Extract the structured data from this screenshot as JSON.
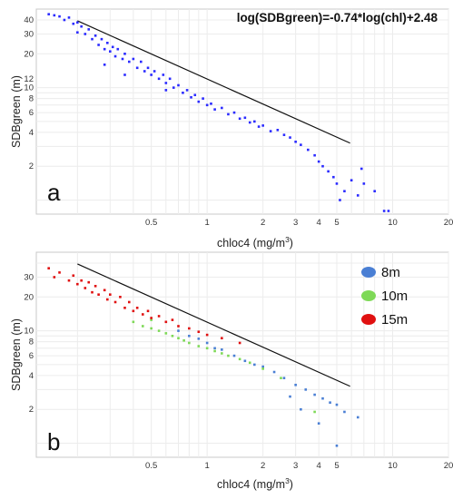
{
  "chart_data": [
    {
      "panel": "a",
      "type": "scatter",
      "xlabel": "chloc4 (mg/m",
      "xlabel_sup": "3",
      "xlabel_close": ")",
      "ylabel": "SDBgreen (m)",
      "xscale": "log",
      "yscale": "log",
      "xlim": [
        0.12,
        20
      ],
      "ylim": [
        0.75,
        50
      ],
      "xticks": [
        "0.5",
        "1",
        "2",
        "3",
        "4",
        "5",
        "10",
        "20"
      ],
      "yticks": [
        "40",
        "30",
        "20",
        "12",
        "10",
        "8",
        "6",
        "4",
        "2"
      ],
      "grid": true,
      "annotation": "log(SDBgreen)=-0.74*log(chl)+2.48",
      "fit_line": {
        "slope": -0.74,
        "intercept": 2.48,
        "x": [
          0.2,
          5.9
        ]
      },
      "series": [
        {
          "color": "#2b2bff",
          "points": [
            [
              0.14,
              45
            ],
            [
              0.15,
              44
            ],
            [
              0.16,
              43
            ],
            [
              0.17,
              40
            ],
            [
              0.18,
              42
            ],
            [
              0.19,
              37
            ],
            [
              0.2,
              38
            ],
            [
              0.2,
              31
            ],
            [
              0.21,
              35
            ],
            [
              0.22,
              30
            ],
            [
              0.23,
              33
            ],
            [
              0.24,
              27
            ],
            [
              0.25,
              29
            ],
            [
              0.26,
              24
            ],
            [
              0.27,
              27
            ],
            [
              0.28,
              22
            ],
            [
              0.29,
              25
            ],
            [
              0.3,
              21
            ],
            [
              0.31,
              23
            ],
            [
              0.32,
              19
            ],
            [
              0.33,
              22
            ],
            [
              0.35,
              18
            ],
            [
              0.36,
              20
            ],
            [
              0.38,
              17
            ],
            [
              0.4,
              18
            ],
            [
              0.42,
              15
            ],
            [
              0.44,
              17
            ],
            [
              0.46,
              14
            ],
            [
              0.48,
              15
            ],
            [
              0.5,
              13
            ],
            [
              0.52,
              14
            ],
            [
              0.55,
              12
            ],
            [
              0.58,
              13
            ],
            [
              0.6,
              11
            ],
            [
              0.63,
              12
            ],
            [
              0.66,
              10
            ],
            [
              0.7,
              10.5
            ],
            [
              0.74,
              9
            ],
            [
              0.78,
              9.5
            ],
            [
              0.82,
              8.2
            ],
            [
              0.86,
              8.6
            ],
            [
              0.9,
              7.5
            ],
            [
              0.95,
              8
            ],
            [
              1.0,
              7
            ],
            [
              1.05,
              7.2
            ],
            [
              1.1,
              6.4
            ],
            [
              1.2,
              6.6
            ],
            [
              1.3,
              5.8
            ],
            [
              1.4,
              6
            ],
            [
              1.5,
              5.3
            ],
            [
              1.6,
              5.4
            ],
            [
              1.7,
              4.9
            ],
            [
              1.8,
              5
            ],
            [
              1.9,
              4.5
            ],
            [
              2.0,
              4.6
            ],
            [
              2.2,
              4.1
            ],
            [
              2.4,
              4.2
            ],
            [
              2.6,
              3.8
            ],
            [
              2.8,
              3.6
            ],
            [
              3.0,
              3.3
            ],
            [
              3.2,
              3.1
            ],
            [
              3.5,
              2.8
            ],
            [
              3.8,
              2.5
            ],
            [
              4.0,
              2.2
            ],
            [
              4.2,
              2.0
            ],
            [
              4.5,
              1.8
            ],
            [
              4.8,
              1.6
            ],
            [
              5.0,
              1.4
            ],
            [
              5.5,
              1.2
            ],
            [
              6.0,
              1.5
            ],
            [
              6.5,
              1.1
            ],
            [
              7.0,
              1.4
            ],
            [
              5.2,
              1.0
            ],
            [
              6.8,
              1.9
            ],
            [
              8.0,
              1.2
            ],
            [
              9.5,
              0.8
            ],
            [
              9.0,
              0.8
            ],
            [
              0.28,
              16
            ],
            [
              0.36,
              13
            ],
            [
              0.6,
              9.5
            ]
          ]
        }
      ]
    },
    {
      "panel": "b",
      "type": "scatter",
      "xlabel": "chloc4 (mg/m",
      "xlabel_sup": "3",
      "xlabel_close": ")",
      "ylabel": "SDBgreen (m)",
      "xscale": "log",
      "yscale": "log",
      "xlim": [
        0.12,
        20
      ],
      "ylim": [
        0.75,
        50
      ],
      "xticks": [
        "0.5",
        "1",
        "2",
        "3",
        "4",
        "5",
        "10",
        "20"
      ],
      "yticks": [
        "30",
        "20",
        "10",
        "8",
        "6",
        "4",
        "2"
      ],
      "grid": true,
      "legend_position": "top-right",
      "fit_line": {
        "slope": -0.74,
        "intercept": 2.48,
        "x": [
          0.2,
          5.9
        ]
      },
      "series": [
        {
          "name": "8m",
          "color": "#4a7fd4",
          "points": [
            [
              0.7,
              10
            ],
            [
              0.8,
              9
            ],
            [
              0.9,
              8.5
            ],
            [
              1.0,
              7.8
            ],
            [
              1.1,
              7
            ],
            [
              1.2,
              6.8
            ],
            [
              1.4,
              6
            ],
            [
              1.6,
              5.4
            ],
            [
              1.8,
              5
            ],
            [
              2.0,
              4.8
            ],
            [
              2.3,
              4.3
            ],
            [
              2.6,
              3.8
            ],
            [
              3.0,
              3.3
            ],
            [
              3.4,
              3
            ],
            [
              3.8,
              2.7
            ],
            [
              4.2,
              2.5
            ],
            [
              4.6,
              2.3
            ],
            [
              5.0,
              2.2
            ],
            [
              5.5,
              1.9
            ],
            [
              6.5,
              1.7
            ],
            [
              4.0,
              1.5
            ],
            [
              2.8,
              2.6
            ],
            [
              3.2,
              2.0
            ],
            [
              5.0,
              0.95
            ]
          ]
        },
        {
          "name": "10m",
          "color": "#7ed957",
          "points": [
            [
              0.4,
              12
            ],
            [
              0.45,
              11
            ],
            [
              0.5,
              10.5
            ],
            [
              0.55,
              10
            ],
            [
              0.6,
              9.5
            ],
            [
              0.65,
              9
            ],
            [
              0.7,
              8.6
            ],
            [
              0.75,
              8.2
            ],
            [
              0.8,
              7.8
            ],
            [
              0.9,
              7.3
            ],
            [
              1.0,
              7
            ],
            [
              1.1,
              6.6
            ],
            [
              1.2,
              6.3
            ],
            [
              1.3,
              6
            ],
            [
              1.5,
              5.6
            ],
            [
              1.7,
              5.2
            ],
            [
              2.0,
              4.6
            ],
            [
              2.5,
              3.8
            ],
            [
              3.8,
              1.9
            ],
            [
              0.5,
              12.5
            ]
          ]
        },
        {
          "name": "15m",
          "color": "#e01010",
          "points": [
            [
              0.14,
              36
            ],
            [
              0.15,
              30
            ],
            [
              0.16,
              33
            ],
            [
              0.18,
              28
            ],
            [
              0.19,
              31
            ],
            [
              0.2,
              26
            ],
            [
              0.21,
              28
            ],
            [
              0.22,
              24
            ],
            [
              0.23,
              27
            ],
            [
              0.24,
              22
            ],
            [
              0.25,
              25
            ],
            [
              0.26,
              21
            ],
            [
              0.28,
              23
            ],
            [
              0.29,
              19
            ],
            [
              0.3,
              21
            ],
            [
              0.32,
              18
            ],
            [
              0.34,
              20
            ],
            [
              0.36,
              16
            ],
            [
              0.38,
              18
            ],
            [
              0.4,
              15
            ],
            [
              0.42,
              16
            ],
            [
              0.45,
              14
            ],
            [
              0.48,
              15
            ],
            [
              0.5,
              13
            ],
            [
              0.55,
              13.5
            ],
            [
              0.6,
              12
            ],
            [
              0.65,
              12.5
            ],
            [
              0.7,
              11
            ],
            [
              0.8,
              10.5
            ],
            [
              0.9,
              9.8
            ],
            [
              1.0,
              9.2
            ],
            [
              1.2,
              8.6
            ],
            [
              1.5,
              7.8
            ]
          ]
        }
      ]
    }
  ]
}
